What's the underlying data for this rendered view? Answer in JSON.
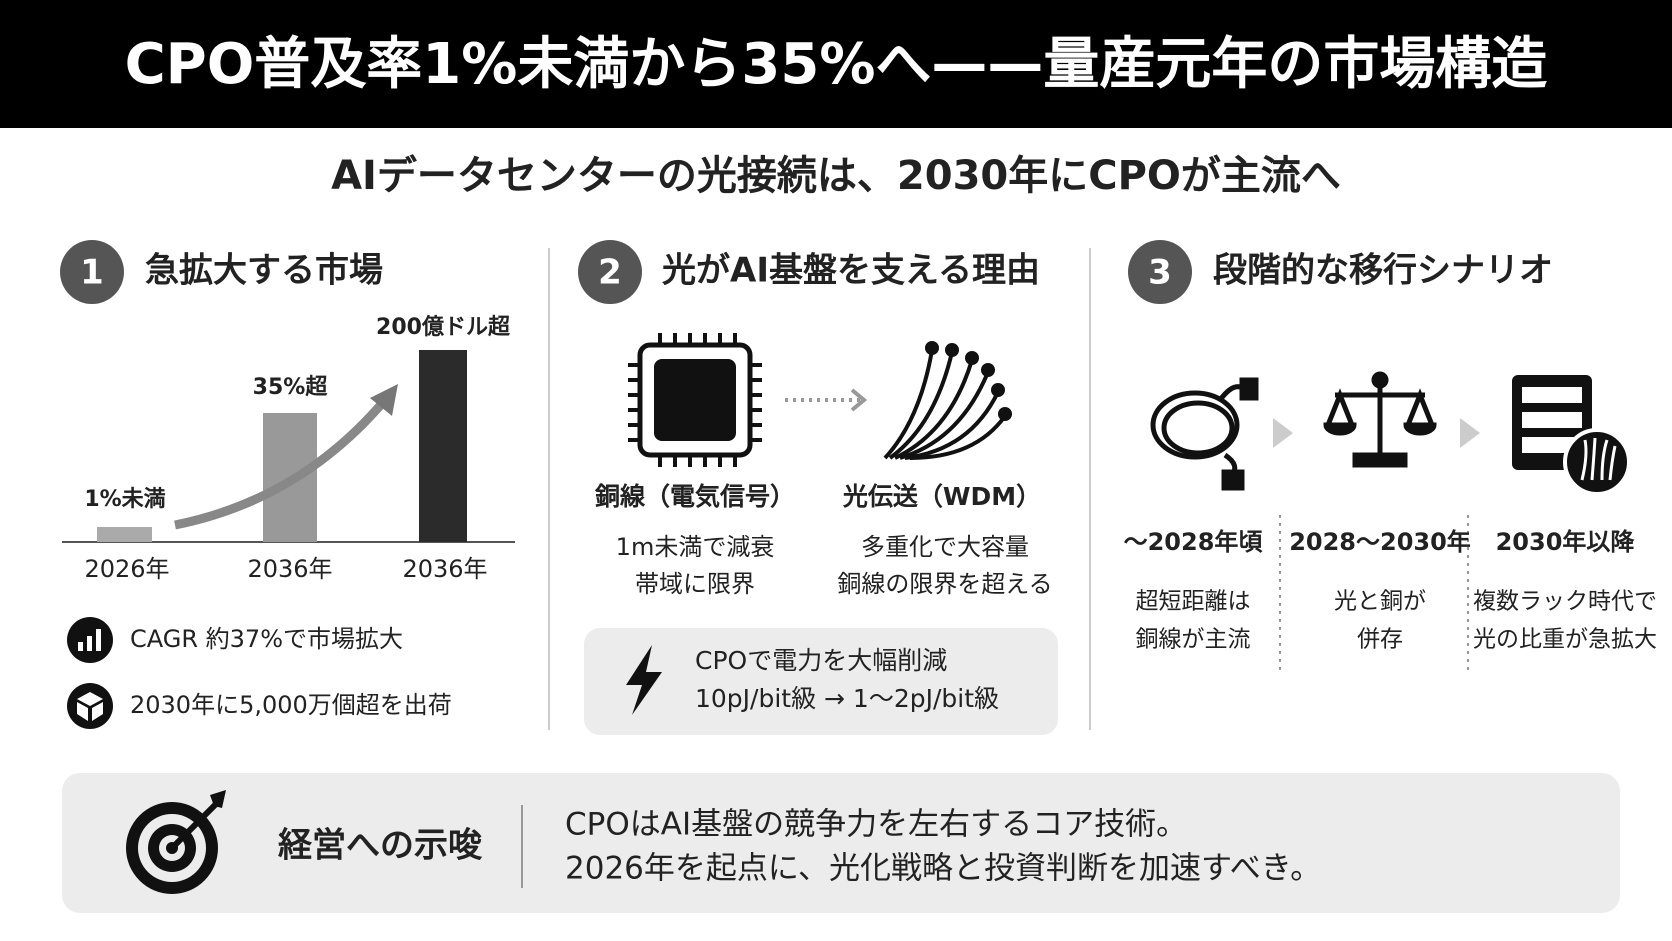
{
  "header": {
    "title": "CPO普及率1%未満から35%へ——量産元年の市場構造"
  },
  "subtitle": "AIデータセンターの光接続は、2030年にCPOが主流へ",
  "sections": [
    {
      "number": "1",
      "heading": "急拡大する市場",
      "chart": {
        "bar_labels": [
          "1%未満",
          "35%超",
          "200億ドル超"
        ],
        "categories": [
          "2026年",
          "2036年",
          "2036年"
        ]
      },
      "bullets": [
        "CAGR 約37%で市場拡大",
        "2030年に5,000万個超を出荷"
      ]
    },
    {
      "number": "2",
      "heading": "光がAI基盤を支える理由",
      "items": [
        {
          "label": "銅線（電気信号）",
          "lines": [
            "1m未満で減衰",
            "帯域に限界"
          ]
        },
        {
          "label": "光伝送（WDM）",
          "lines": [
            "多重化で大容量",
            "銅線の限界を超える"
          ]
        }
      ],
      "note": [
        "CPOで電力を大幅削減",
        "10pJ/bit級 → 1〜2pJ/bit級"
      ]
    },
    {
      "number": "3",
      "heading": "段階的な移行シナリオ",
      "stages": [
        {
          "period": "〜2028年頃",
          "lines": [
            "超短距離は",
            "銅線が主流"
          ]
        },
        {
          "period": "2028〜2030年",
          "lines": [
            "光と銅が",
            "併存"
          ]
        },
        {
          "period": "2030年以降",
          "lines": [
            "複数ラック時代で",
            "光の比重が急拡大"
          ]
        }
      ]
    }
  ],
  "footer": {
    "label": "経営への示唆",
    "lines": [
      "CPOはAI基盤の競争力を左右するコア技術。",
      "2026年を起点に、光化戦略と投資判断を加速すべき。"
    ]
  }
}
